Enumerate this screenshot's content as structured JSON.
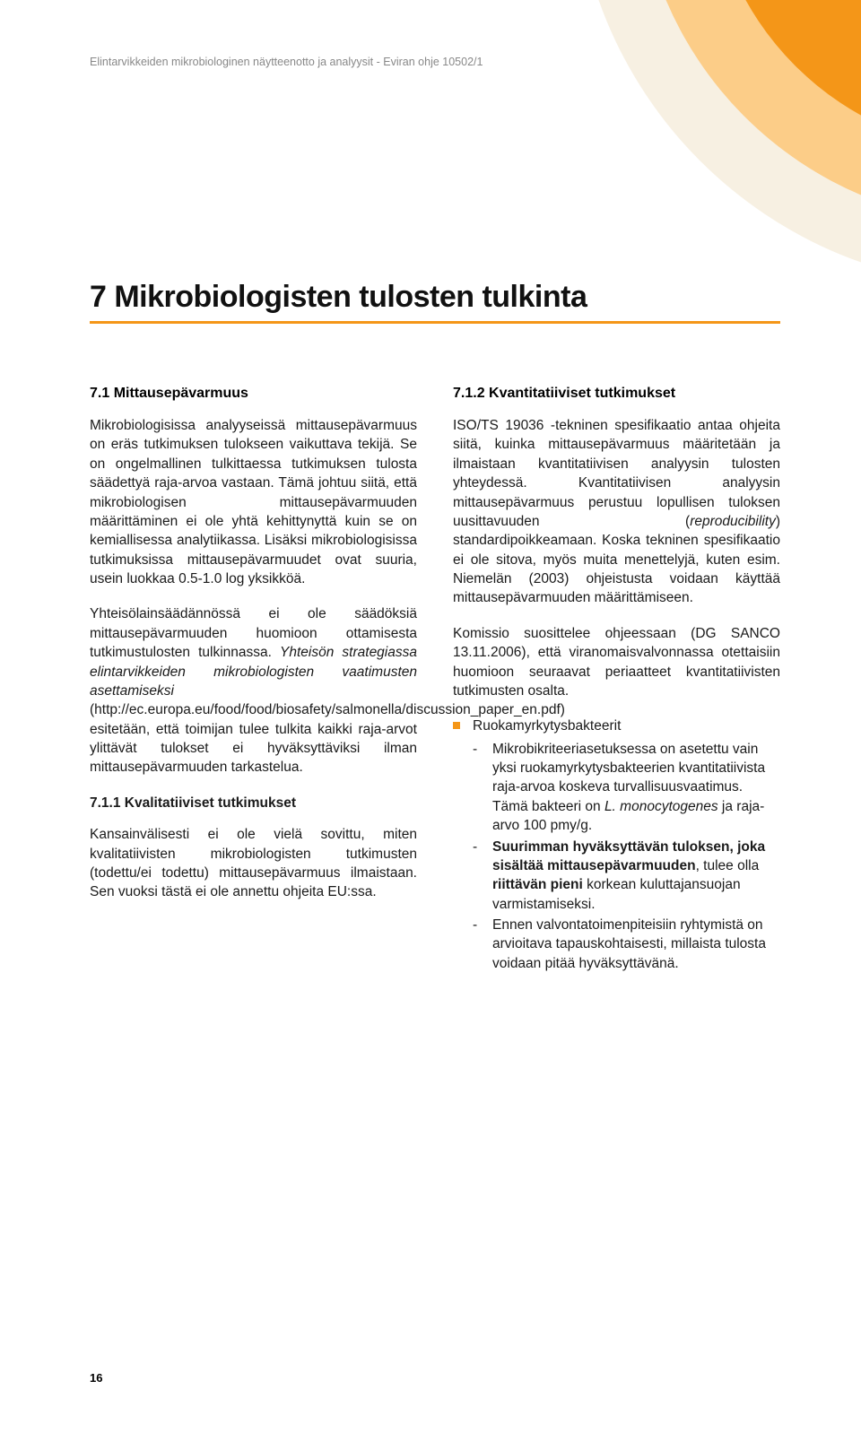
{
  "header": "Elintarvikkeiden mikrobiologinen näytteenotto ja analyysit - Eviran ohje 10502/1",
  "chapter_title": "7 Mikrobiologisten tulosten tulkinta",
  "page_number": "16",
  "colors": {
    "accent": "#f49618",
    "arc_outer": "#f7f0e2",
    "arc_mid": "#fccd88",
    "arc_inner": "#f49618",
    "text": "#1a1a1a",
    "header_text": "#888888"
  },
  "left": {
    "h1": "7.1 Mittausepävarmuus",
    "p1": "Mikrobiologisissa analyyseissä mittausepävarmuus on eräs tutkimuksen tulokseen vaikuttava tekijä. Se on ongelmallinen tulkittaessa tutkimuksen tulosta säädettyä raja-arvoa vastaan. Tämä johtuu siitä, että mikrobiologisen mittausepävarmuuden määrittäminen ei ole yhtä kehittynyttä kuin se on kemiallisessa analytiikassa. Lisäksi mikrobiologisissa tutkimuksissa mittausepävarmuudet ovat suuria, usein luokkaa 0.5-1.0 log yksikköä.",
    "p2a": "Yhteisölainsäädännössä ei ole säädöksiä mittausepävarmuuden huomioon ottamisesta tutkimustulosten tulkinnassa. ",
    "p2b": "Yhteisön strategiassa elintarvikkeiden mikrobiologisten vaatimusten asettamiseksi",
    "p2c": " (http://ec.europa.eu/food/food/biosafety/salmonella/discussion_paper_en.pdf) esitetään, että toimijan tulee tulkita kaikki raja-arvot ylittävät tulokset ei hyväksyttäviksi ilman mittausepävarmuuden tarkastelua.",
    "h2": "7.1.1 Kvalitatiiviset tutkimukset",
    "p3": "Kansainvälisesti ei ole vielä sovittu, miten kvalitatiivisten mikrobiologisten tutkimusten (todettu/ei todettu) mittausepävarmuus ilmaistaan. Sen vuoksi tästä ei ole annettu ohjeita EU:ssa."
  },
  "right": {
    "h1": "7.1.2 Kvantitatiiviset tutkimukset",
    "p1a": "ISO/TS 19036 -tekninen spesifikaatio antaa ohjeita siitä, kuinka mittausepävarmuus määritetään ja ilmaistaan kvantitatiivisen analyysin tulosten yhteydessä. Kvantitatiivisen analyysin mittausepävarmuus perustuu lopullisen tuloksen uusittavuuden (",
    "p1b": "reproducibility",
    "p1c": ") standardipoikkeamaan. Koska tekninen spesifikaatio ei ole sitova, myös muita menettelyjä, kuten esim. Niemelän (2003) ohjeistusta voidaan käyttää mittausepävarmuuden määrittämiseen.",
    "p2": "Komissio suosittelee ohjeessaan (DG SANCO 13.11.2006), että viranomaisvalvonnassa otettaisiin huomioon seuraavat periaatteet kvantitatiivisten tutkimusten osalta.",
    "bullet_label": "Ruokamyrkytysbakteerit",
    "d1a": "Mikrobikriteeriasetuksessa on asetettu vain yksi ruokamyrkytysbakteerien kvantitatiivista raja-arvoa koskeva turvallisuusvaatimus. Tämä bakteeri on ",
    "d1b": "L. monocytogenes",
    "d1c": " ja raja-arvo 100 pmy/g.",
    "d2a": "Suurimman hyväksyttävän tuloksen, joka sisältää mittausepävarmuuden",
    "d2b": ", tulee olla ",
    "d2c": "riittävän pieni",
    "d2d": " korkean kuluttajansuojan varmistamiseksi.",
    "d3": "Ennen valvontatoimenpiteisiin ryhtymistä on arvioitava tapauskohtaisesti, millaista tulosta voidaan pitää hyväksyttävänä."
  }
}
